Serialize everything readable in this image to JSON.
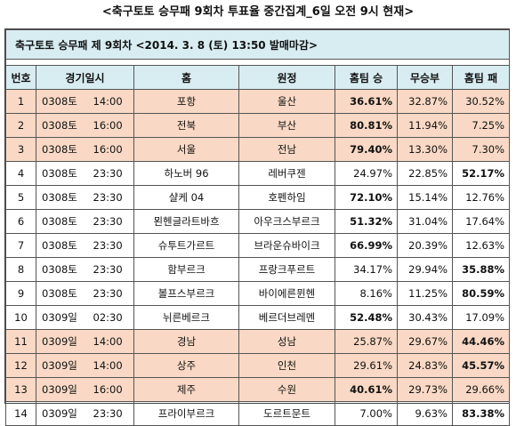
{
  "title": "<축구토토 승무패 9회차 투표율 중간집계_6일 오전 9시 현재>",
  "caption": "축구토토 승무패 제 9회차 <2014. 3. 8 (토) 13:50 발매마감>",
  "headers": {
    "no": "번호",
    "datetime": "경기일시",
    "home": "홈",
    "away": "원정",
    "win": "홈팀 승",
    "draw": "무승부",
    "lose": "홈팀 패"
  },
  "rows": [
    {
      "no": "1",
      "date": "0308토",
      "time": "14:00",
      "home": "포항",
      "away": "울산",
      "win": "36.61%",
      "draw": "32.87%",
      "lose": "30.52%",
      "highlight": true,
      "bold": "win"
    },
    {
      "no": "2",
      "date": "0308토",
      "time": "16:00",
      "home": "전북",
      "away": "부산",
      "win": "80.81%",
      "draw": "11.94%",
      "lose": "7.25%",
      "highlight": true,
      "bold": "win"
    },
    {
      "no": "3",
      "date": "0308토",
      "time": "16:00",
      "home": "서울",
      "away": "전남",
      "win": "79.40%",
      "draw": "13.30%",
      "lose": "7.30%",
      "highlight": true,
      "bold": "win"
    },
    {
      "no": "4",
      "date": "0308토",
      "time": "23:30",
      "home": "하노버 96",
      "away": "레버쿠젠",
      "win": "24.97%",
      "draw": "22.85%",
      "lose": "52.17%",
      "highlight": false,
      "bold": "lose"
    },
    {
      "no": "5",
      "date": "0308토",
      "time": "23:30",
      "home": "샬케 04",
      "away": "호펜하임",
      "win": "72.10%",
      "draw": "15.14%",
      "lose": "12.76%",
      "highlight": false,
      "bold": "win"
    },
    {
      "no": "6",
      "date": "0308토",
      "time": "23:30",
      "home": "묀헨글라트바흐",
      "away": "아우크스부르크",
      "win": "51.32%",
      "draw": "31.04%",
      "lose": "17.64%",
      "highlight": false,
      "bold": "win"
    },
    {
      "no": "7",
      "date": "0308토",
      "time": "23:30",
      "home": "슈투트가르트",
      "away": "브라운슈바이크",
      "win": "66.99%",
      "draw": "20.39%",
      "lose": "12.63%",
      "highlight": false,
      "bold": "win"
    },
    {
      "no": "8",
      "date": "0308토",
      "time": "23:30",
      "home": "함부르크",
      "away": "프랑크푸르트",
      "win": "34.17%",
      "draw": "29.94%",
      "lose": "35.88%",
      "highlight": false,
      "bold": "lose"
    },
    {
      "no": "9",
      "date": "0308토",
      "time": "23:30",
      "home": "볼프스부르크",
      "away": "바이에른뮌헨",
      "win": "8.16%",
      "draw": "11.25%",
      "lose": "80.59%",
      "highlight": false,
      "bold": "lose"
    },
    {
      "no": "10",
      "date": "0309일",
      "time": "02:30",
      "home": "뉘른베르크",
      "away": "베르더브레멘",
      "win": "52.48%",
      "draw": "30.43%",
      "lose": "17.09%",
      "highlight": false,
      "bold": "win"
    },
    {
      "no": "11",
      "date": "0309일",
      "time": "14:00",
      "home": "경남",
      "away": "성남",
      "win": "25.87%",
      "draw": "29.67%",
      "lose": "44.46%",
      "highlight": true,
      "bold": "lose"
    },
    {
      "no": "12",
      "date": "0309일",
      "time": "14:00",
      "home": "상주",
      "away": "인천",
      "win": "29.61%",
      "draw": "24.83%",
      "lose": "45.57%",
      "highlight": true,
      "bold": "lose"
    },
    {
      "no": "13",
      "date": "0309일",
      "time": "16:00",
      "home": "제주",
      "away": "수원",
      "win": "40.61%",
      "draw": "29.73%",
      "lose": "29.66%",
      "highlight": true,
      "bold": "win"
    },
    {
      "no": "14",
      "date": "0309일",
      "time": "23:30",
      "home": "프라이부르크",
      "away": "도르트문트",
      "win": "7.00%",
      "draw": "9.63%",
      "lose": "83.38%",
      "highlight": false,
      "bold": "lose"
    }
  ],
  "colors": {
    "header_bg": "#d8edf2",
    "highlight_bg": "#f9d9c5"
  }
}
